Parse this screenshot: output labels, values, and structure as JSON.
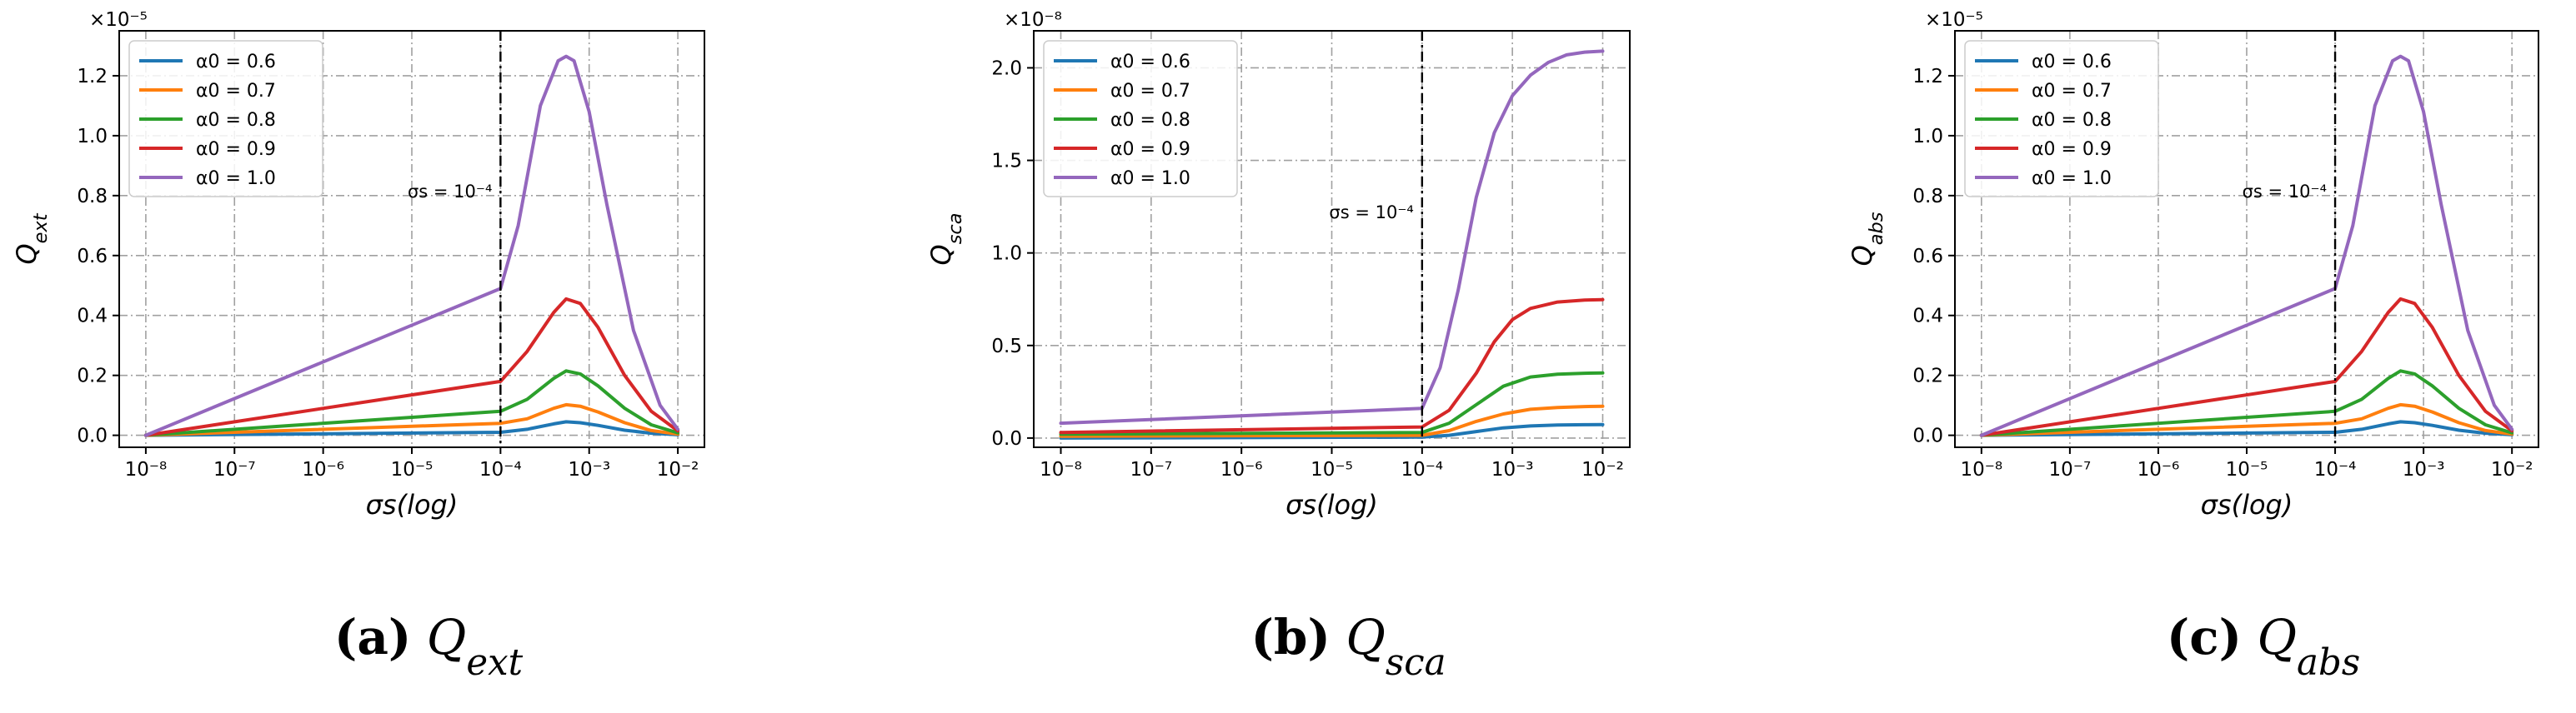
{
  "colors": {
    "series": [
      "#1f77b4",
      "#ff7f0e",
      "#2ca02c",
      "#d62728",
      "#9467bd"
    ],
    "grid": "#a0a0a0",
    "axis": "#000000"
  },
  "chart_data": [
    {
      "type": "line",
      "id": "a",
      "caption": {
        "letter": "(a)",
        "label": "Q_ext"
      },
      "scale_label": "×10⁻⁵",
      "ylabel": "Q_ext",
      "xlabel": "σs(log)",
      "xscale": "log",
      "xlim_exp": [
        -8,
        -2
      ],
      "ylim": [
        -0.04,
        1.35
      ],
      "yticks": [
        "0.0",
        "0.2",
        "0.4",
        "0.6",
        "0.8",
        "1.0",
        "1.2"
      ],
      "xtick_labels": [
        "10⁻⁸",
        "10⁻⁷",
        "10⁻⁶",
        "10⁻⁵",
        "10⁻⁴",
        "10⁻³",
        "10⁻²"
      ],
      "grid": true,
      "legend_position": "top-left",
      "vline": {
        "x_exp": -4,
        "label": "σs = 10⁻⁴"
      },
      "series": [
        {
          "name": "α0 = 0.6",
          "x_exp": [
            -8,
            -4,
            -3.7,
            -3.4,
            -3.26,
            -3.1,
            -2.9,
            -2.6,
            -2.3,
            -2
          ],
          "values": [
            0.0,
            0.01,
            0.02,
            0.038,
            0.045,
            0.042,
            0.033,
            0.017,
            0.007,
            0.002
          ]
        },
        {
          "name": "α0 = 0.7",
          "x_exp": [
            -8,
            -4,
            -3.7,
            -3.4,
            -3.26,
            -3.1,
            -2.9,
            -2.6,
            -2.3,
            -2
          ],
          "values": [
            0.0,
            0.04,
            0.055,
            0.09,
            0.102,
            0.097,
            0.078,
            0.042,
            0.016,
            0.004
          ]
        },
        {
          "name": "α0 = 0.8",
          "x_exp": [
            -8,
            -4,
            -3.7,
            -3.4,
            -3.26,
            -3.1,
            -2.9,
            -2.6,
            -2.3,
            -2
          ],
          "values": [
            0.0,
            0.08,
            0.12,
            0.19,
            0.215,
            0.205,
            0.165,
            0.09,
            0.035,
            0.008
          ]
        },
        {
          "name": "α0 = 0.9",
          "x_exp": [
            -8,
            -4,
            -3.7,
            -3.4,
            -3.26,
            -3.1,
            -2.9,
            -2.6,
            -2.3,
            -2
          ],
          "values": [
            0.0,
            0.18,
            0.28,
            0.41,
            0.455,
            0.44,
            0.36,
            0.2,
            0.08,
            0.015
          ]
        },
        {
          "name": "α0 = 1.0",
          "x_exp": [
            -8,
            -4,
            -3.8,
            -3.55,
            -3.35,
            -3.26,
            -3.17,
            -3.0,
            -2.8,
            -2.5,
            -2.2,
            -2
          ],
          "values": [
            0.0,
            0.49,
            0.7,
            1.1,
            1.25,
            1.265,
            1.25,
            1.08,
            0.77,
            0.35,
            0.1,
            0.02
          ]
        }
      ]
    },
    {
      "type": "line",
      "id": "b",
      "caption": {
        "letter": "(b)",
        "label": "Q_sca"
      },
      "scale_label": "×10⁻⁸",
      "ylabel": "Q_sca",
      "xlabel": "σs(log)",
      "xscale": "log",
      "xlim_exp": [
        -8,
        -2
      ],
      "ylim": [
        -0.05,
        2.2
      ],
      "yticks": [
        "0.0",
        "0.5",
        "1.0",
        "1.5",
        "2.0"
      ],
      "xtick_labels": [
        "10⁻⁸",
        "10⁻⁷",
        "10⁻⁶",
        "10⁻⁵",
        "10⁻⁴",
        "10⁻³",
        "10⁻²"
      ],
      "grid": true,
      "legend_position": "top-left",
      "vline": {
        "x_exp": -4,
        "label": "σs = 10⁻⁴"
      },
      "series": [
        {
          "name": "α0 = 0.6",
          "x_exp": [
            -8,
            -4,
            -3.7,
            -3.4,
            -3.1,
            -2.8,
            -2.5,
            -2.2,
            -2
          ],
          "values": [
            0.0,
            0.005,
            0.015,
            0.035,
            0.055,
            0.065,
            0.07,
            0.072,
            0.073
          ]
        },
        {
          "name": "α0 = 0.7",
          "x_exp": [
            -8,
            -4,
            -3.7,
            -3.4,
            -3.1,
            -2.8,
            -2.5,
            -2.2,
            -2
          ],
          "values": [
            0.01,
            0.015,
            0.04,
            0.09,
            0.13,
            0.155,
            0.165,
            0.17,
            0.172
          ]
        },
        {
          "name": "α0 = 0.8",
          "x_exp": [
            -8,
            -4,
            -3.7,
            -3.4,
            -3.1,
            -2.8,
            -2.5,
            -2.2,
            -2
          ],
          "values": [
            0.02,
            0.03,
            0.08,
            0.18,
            0.28,
            0.33,
            0.345,
            0.35,
            0.352
          ]
        },
        {
          "name": "α0 = 0.9",
          "x_exp": [
            -8,
            -4,
            -3.7,
            -3.4,
            -3.2,
            -3.0,
            -2.8,
            -2.5,
            -2.2,
            -2
          ],
          "values": [
            0.03,
            0.06,
            0.15,
            0.35,
            0.52,
            0.64,
            0.7,
            0.735,
            0.745,
            0.748
          ]
        },
        {
          "name": "α0 = 1.0",
          "x_exp": [
            -8,
            -4,
            -3.8,
            -3.6,
            -3.4,
            -3.2,
            -3.0,
            -2.8,
            -2.6,
            -2.4,
            -2.2,
            -2
          ],
          "values": [
            0.08,
            0.16,
            0.38,
            0.8,
            1.3,
            1.65,
            1.85,
            1.96,
            2.03,
            2.07,
            2.085,
            2.09
          ]
        }
      ]
    },
    {
      "type": "line",
      "id": "c",
      "caption": {
        "letter": "(c)",
        "label": "Q_abs"
      },
      "scale_label": "×10⁻⁵",
      "ylabel": "Q_abs",
      "xlabel": "σs(log)",
      "xscale": "log",
      "xlim_exp": [
        -8,
        -2
      ],
      "ylim": [
        -0.04,
        1.35
      ],
      "yticks": [
        "0.0",
        "0.2",
        "0.4",
        "0.6",
        "0.8",
        "1.0",
        "1.2"
      ],
      "xtick_labels": [
        "10⁻⁸",
        "10⁻⁷",
        "10⁻⁶",
        "10⁻⁵",
        "10⁻⁴",
        "10⁻³",
        "10⁻²"
      ],
      "grid": true,
      "legend_position": "top-left",
      "vline": {
        "x_exp": -4,
        "label": "σs = 10⁻⁴"
      },
      "series": [
        {
          "name": "α0 = 0.6",
          "x_exp": [
            -8,
            -4,
            -3.7,
            -3.4,
            -3.26,
            -3.1,
            -2.9,
            -2.6,
            -2.3,
            -2
          ],
          "values": [
            0.0,
            0.01,
            0.02,
            0.038,
            0.045,
            0.042,
            0.033,
            0.017,
            0.007,
            0.002
          ]
        },
        {
          "name": "α0 = 0.7",
          "x_exp": [
            -8,
            -4,
            -3.7,
            -3.4,
            -3.26,
            -3.1,
            -2.9,
            -2.6,
            -2.3,
            -2
          ],
          "values": [
            0.0,
            0.04,
            0.055,
            0.09,
            0.102,
            0.097,
            0.078,
            0.042,
            0.016,
            0.004
          ]
        },
        {
          "name": "α0 = 0.8",
          "x_exp": [
            -8,
            -4,
            -3.7,
            -3.4,
            -3.26,
            -3.1,
            -2.9,
            -2.6,
            -2.3,
            -2
          ],
          "values": [
            0.0,
            0.08,
            0.12,
            0.19,
            0.215,
            0.205,
            0.165,
            0.09,
            0.035,
            0.008
          ]
        },
        {
          "name": "α0 = 0.9",
          "x_exp": [
            -8,
            -4,
            -3.7,
            -3.4,
            -3.26,
            -3.1,
            -2.9,
            -2.6,
            -2.3,
            -2
          ],
          "values": [
            0.0,
            0.18,
            0.28,
            0.41,
            0.455,
            0.44,
            0.36,
            0.2,
            0.08,
            0.015
          ]
        },
        {
          "name": "α0 = 1.0",
          "x_exp": [
            -8,
            -4,
            -3.8,
            -3.55,
            -3.35,
            -3.26,
            -3.17,
            -3.0,
            -2.8,
            -2.5,
            -2.2,
            -2
          ],
          "values": [
            0.0,
            0.49,
            0.7,
            1.1,
            1.25,
            1.265,
            1.25,
            1.08,
            0.77,
            0.35,
            0.1,
            0.02
          ]
        }
      ]
    }
  ]
}
